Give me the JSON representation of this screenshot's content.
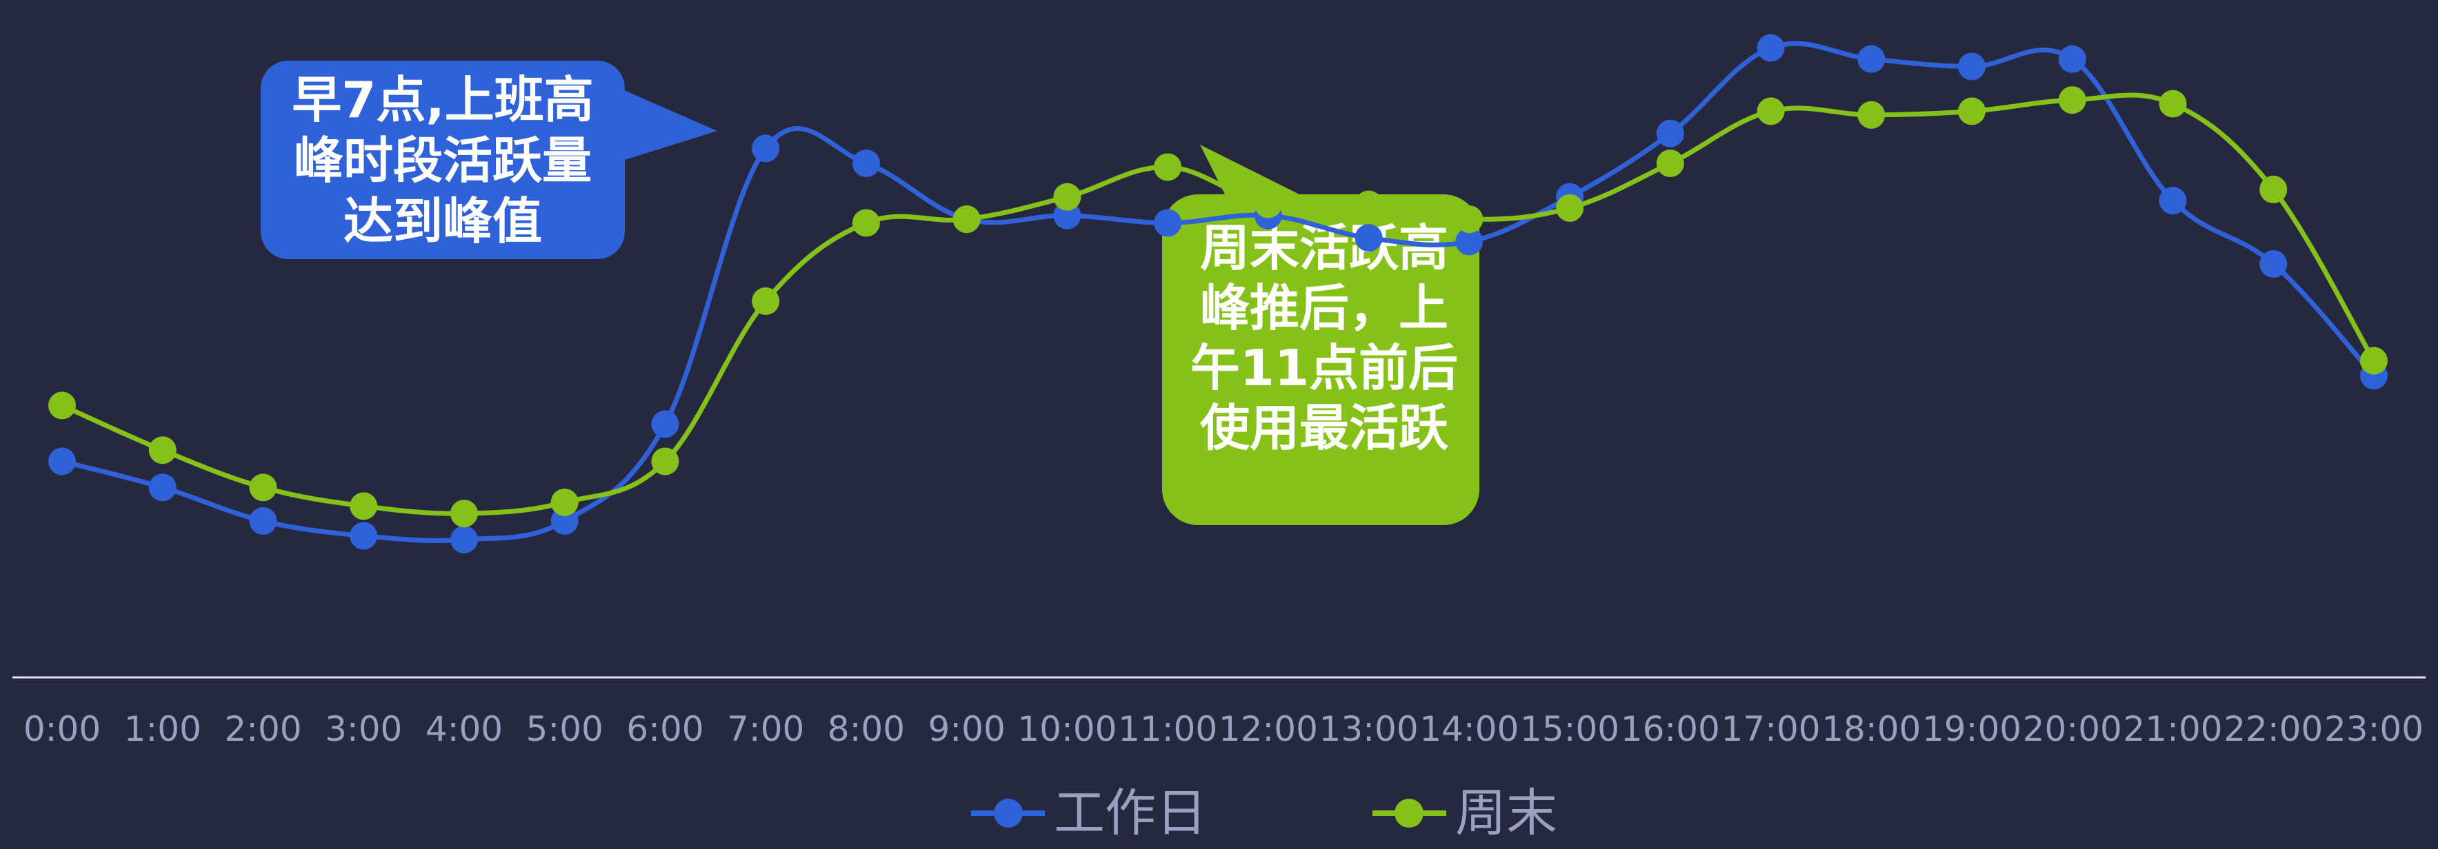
{
  "chart_data": {
    "type": "line",
    "categories": [
      "0:00",
      "1:00",
      "2:00",
      "3:00",
      "4:00",
      "5:00",
      "6:00",
      "7:00",
      "8:00",
      "9:00",
      "10:00",
      "11:00",
      "12:00",
      "13:00",
      "14:00",
      "15:00",
      "16:00",
      "17:00",
      "18:00",
      "19:00",
      "20:00",
      "21:00",
      "22:00",
      "23:00"
    ],
    "series": [
      {
        "name": "工作日",
        "color": "#2f62d8",
        "values": [
          58,
          51,
          42,
          38,
          37,
          42,
          68,
          142,
          138,
          123,
          124,
          122,
          124,
          118,
          117,
          129,
          146,
          169,
          166,
          164,
          166,
          128,
          111,
          81
        ]
      },
      {
        "name": "周末",
        "color": "#86c11a",
        "values": [
          73,
          61,
          51,
          46,
          44,
          47,
          58,
          101,
          122,
          123,
          129,
          137,
          127,
          127,
          123,
          126,
          138,
          152,
          151,
          152,
          155,
          154,
          131,
          85
        ]
      }
    ],
    "xlabel": "",
    "ylabel": "",
    "ylim": [
      0,
      180
    ],
    "grid": false,
    "legend_position": "bottom-center",
    "annotations": [
      {
        "text_lines": [
          "早7点,上班高",
          "峰时段活跃量",
          "达到峰值"
        ],
        "color": "#2f62d8",
        "anchor_category": "7:00"
      },
      {
        "text_lines": [
          "周末活跃高",
          "峰推后，上",
          "午11点前后",
          "使用最活跃"
        ],
        "color": "#86c11a",
        "anchor_category": "11:00"
      }
    ]
  }
}
